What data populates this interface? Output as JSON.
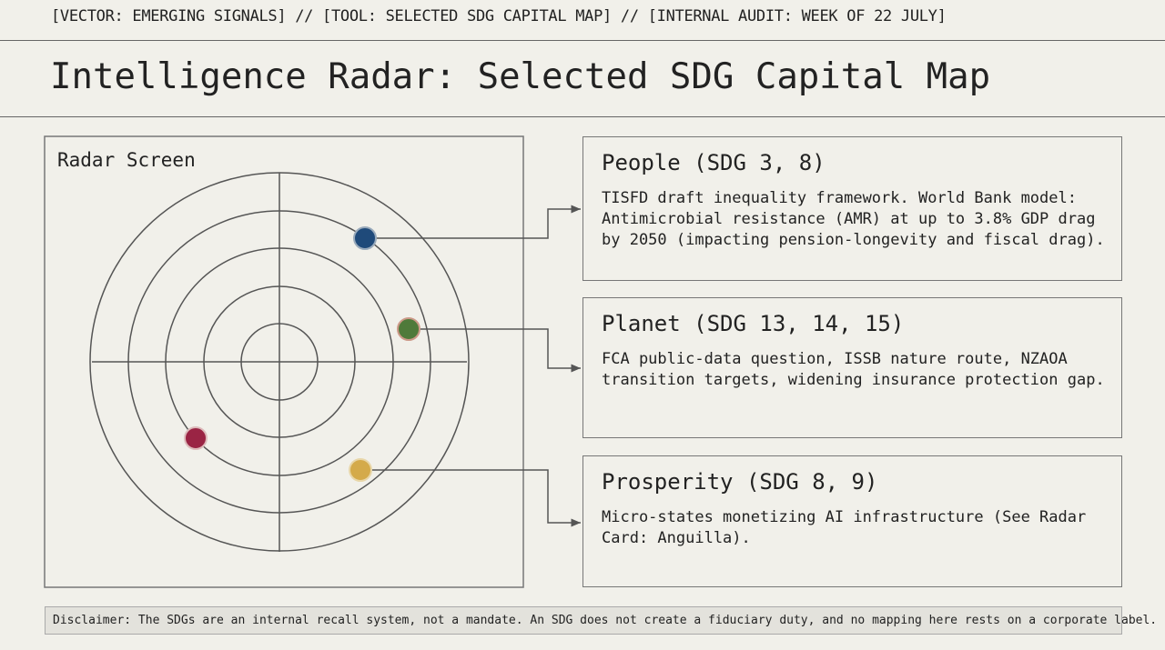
{
  "header": {
    "breadcrumb": "[VECTOR: EMERGING SIGNALS] // [TOOL: SELECTED SDG CAPITAL MAP] // [INTERNAL AUDIT: WEEK OF 22 JULY]",
    "title": "Intelligence Radar: Selected SDG Capital Map"
  },
  "radar": {
    "label": "Radar Screen"
  },
  "cards": [
    {
      "title": "People (SDG 3, 8)",
      "text": "TISFD draft inequality framework. World Bank model: Antimicrobial resistance (AMR) at up to 3.8% GDP drag by 2050 (impacting pension-longevity and fiscal drag)."
    },
    {
      "title": "Planet (SDG 13, 14, 15)",
      "text": "FCA public-data question, ISSB nature route, NZAOA transition targets, widening insurance protection gap."
    },
    {
      "title": "Prosperity (SDG 8, 9)",
      "text": "Micro-states monetizing AI infrastructure (See Radar Card: Anguilla)."
    }
  ],
  "disclaimer": "Disclaimer: The SDGs are an internal recall system, not a mandate. An SDG does not create a fiduciary duty, and no mapping here rests on a corporate label."
}
